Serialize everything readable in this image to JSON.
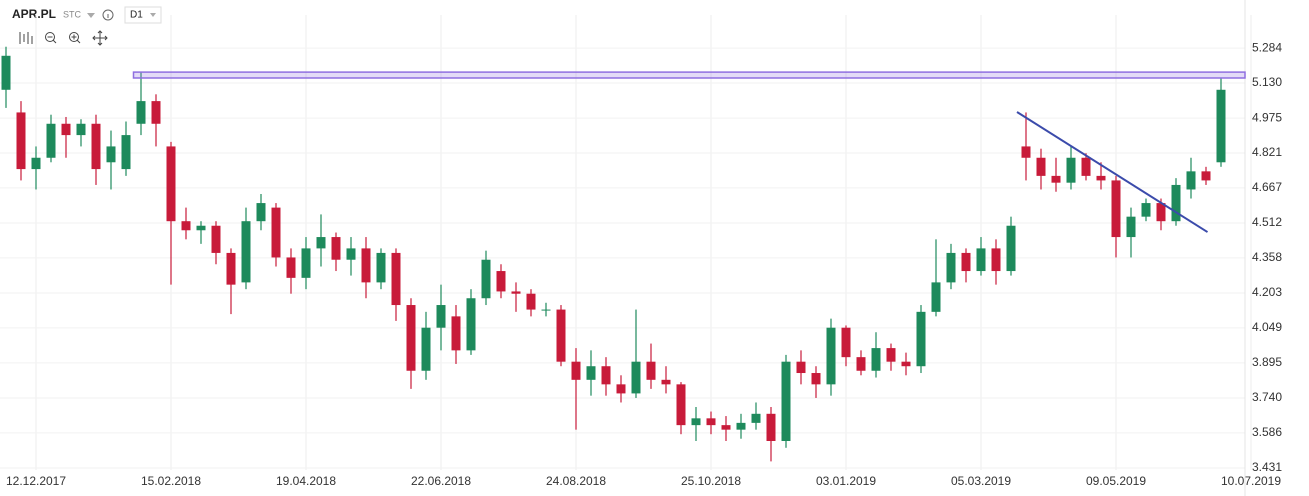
{
  "header": {
    "symbol": "APR.PL",
    "market": "STC",
    "interval": "D1"
  },
  "chart_data": {
    "type": "candlestick",
    "open": [
      5.1,
      5.0,
      4.75,
      4.8,
      4.95,
      4.9,
      4.95,
      4.78,
      4.75,
      4.95,
      5.05,
      4.85,
      4.52,
      4.48,
      4.5,
      4.38,
      4.25,
      4.52,
      4.58,
      4.36,
      4.27,
      4.4,
      4.45,
      4.35,
      4.4,
      4.25,
      4.38,
      4.15,
      3.86,
      4.05,
      4.1,
      3.95,
      4.18,
      4.3,
      4.21,
      4.2,
      4.13,
      4.13,
      3.9,
      3.82,
      3.88,
      3.8,
      3.76,
      3.9,
      3.82,
      3.8,
      3.62,
      3.65,
      3.62,
      3.6,
      3.63,
      3.67,
      3.55,
      3.9,
      3.85,
      3.8,
      4.05,
      3.92,
      3.86,
      3.96,
      3.9,
      3.88,
      4.12,
      4.25,
      4.38,
      4.3,
      4.4,
      4.3,
      4.85,
      4.8,
      4.72,
      4.69,
      4.8,
      4.72,
      4.7,
      4.45,
      4.54,
      4.6,
      4.52,
      4.66,
      4.74,
      4.78
    ],
    "high": [
      5.29,
      5.05,
      4.85,
      4.99,
      4.98,
      4.97,
      4.99,
      4.92,
      4.96,
      5.18,
      5.08,
      4.87,
      4.58,
      4.52,
      4.52,
      4.4,
      4.58,
      4.64,
      4.6,
      4.4,
      4.45,
      4.55,
      4.47,
      4.45,
      4.45,
      4.4,
      4.4,
      4.18,
      4.12,
      4.24,
      4.15,
      4.22,
      4.39,
      4.33,
      4.25,
      4.22,
      4.16,
      4.15,
      3.96,
      3.95,
      3.92,
      3.84,
      4.13,
      3.98,
      3.88,
      3.81,
      3.7,
      3.68,
      3.66,
      3.67,
      3.72,
      3.7,
      3.93,
      3.95,
      3.88,
      4.09,
      4.06,
      3.95,
      4.03,
      3.98,
      3.94,
      4.15,
      4.44,
      4.42,
      4.4,
      4.45,
      4.44,
      4.54,
      5.0,
      4.84,
      4.8,
      4.85,
      4.82,
      4.78,
      4.72,
      4.58,
      4.62,
      4.62,
      4.71,
      4.8,
      4.76,
      5.15
    ],
    "low": [
      5.02,
      4.7,
      4.66,
      4.78,
      4.8,
      4.85,
      4.68,
      4.66,
      4.72,
      4.9,
      4.85,
      4.24,
      4.44,
      4.42,
      4.33,
      4.11,
      4.22,
      4.48,
      4.32,
      4.2,
      4.22,
      4.32,
      4.3,
      4.28,
      4.18,
      4.22,
      4.08,
      3.78,
      3.82,
      3.95,
      3.89,
      3.93,
      4.15,
      4.18,
      4.12,
      4.1,
      4.1,
      3.88,
      3.6,
      3.75,
      3.75,
      3.72,
      3.74,
      3.78,
      3.76,
      3.58,
      3.55,
      3.58,
      3.55,
      3.56,
      3.6,
      3.46,
      3.52,
      3.8,
      3.74,
      3.75,
      3.88,
      3.84,
      3.83,
      3.86,
      3.84,
      3.85,
      4.1,
      4.22,
      4.25,
      4.28,
      4.24,
      4.28,
      4.7,
      4.66,
      4.65,
      4.66,
      4.7,
      4.66,
      4.36,
      4.36,
      4.52,
      4.48,
      4.5,
      4.62,
      4.68,
      4.76
    ],
    "close": [
      5.25,
      4.75,
      4.8,
      4.95,
      4.9,
      4.95,
      4.75,
      4.85,
      4.9,
      5.05,
      4.95,
      4.52,
      4.48,
      4.5,
      4.38,
      4.24,
      4.52,
      4.6,
      4.36,
      4.27,
      4.4,
      4.45,
      4.35,
      4.4,
      4.25,
      4.38,
      4.15,
      3.86,
      4.05,
      4.15,
      3.95,
      4.18,
      4.35,
      4.21,
      4.2,
      4.13,
      4.13,
      3.9,
      3.82,
      3.88,
      3.8,
      3.76,
      3.9,
      3.82,
      3.8,
      3.62,
      3.65,
      3.62,
      3.6,
      3.63,
      3.67,
      3.55,
      3.9,
      3.85,
      3.8,
      4.05,
      3.92,
      3.86,
      3.96,
      3.9,
      3.88,
      4.12,
      4.25,
      4.38,
      4.3,
      4.4,
      4.3,
      4.5,
      4.8,
      4.72,
      4.69,
      4.8,
      4.72,
      4.7,
      4.45,
      4.54,
      4.6,
      4.52,
      4.68,
      4.74,
      4.7,
      5.1
    ],
    "up_color": "#1e8a5c",
    "down_color": "#c81b3a",
    "xlim": [
      -0.4,
      82.6
    ],
    "xticks": [
      {
        "value": 2,
        "label": "12.12.2017"
      },
      {
        "value": 11,
        "label": "15.02.2018"
      },
      {
        "value": 20,
        "label": "19.04.2018"
      },
      {
        "value": 29,
        "label": "22.06.2018"
      },
      {
        "value": 38,
        "label": "24.08.2018"
      },
      {
        "value": 47,
        "label": "25.10.2018"
      },
      {
        "value": 56,
        "label": "03.01.2019"
      },
      {
        "value": 65,
        "label": "05.03.2019"
      },
      {
        "value": 74,
        "label": "09.05.2019"
      },
      {
        "value": 83,
        "label": "10.07.2019"
      }
    ],
    "ylim": [
      3.422,
      5.43
    ],
    "yticks": [
      5.284,
      {
        "value": 5.13,
        "label": "5.130"
      },
      4.975,
      4.821,
      4.667,
      4.512,
      4.358,
      4.203,
      4.049,
      3.895,
      {
        "value": 3.74,
        "label": "3.740"
      },
      3.586,
      3.431
    ],
    "grid": true,
    "band": {
      "from_x": 8.5,
      "y": [
        5.152,
        5.178
      ],
      "color": "#8f6fe0"
    },
    "trendline": {
      "x": [
        67.4,
        80.1
      ],
      "y": [
        5.002,
        4.472
      ],
      "color": "#3b4bab"
    }
  }
}
